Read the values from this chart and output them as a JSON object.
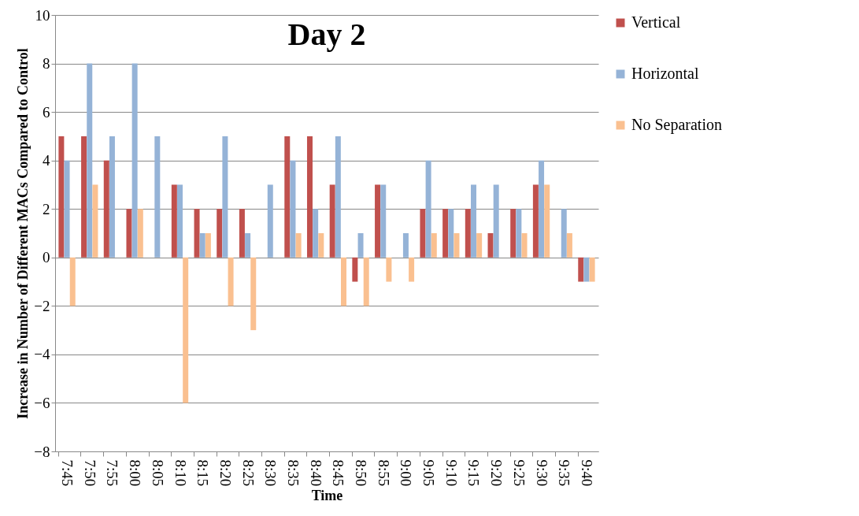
{
  "chart_data": {
    "type": "bar",
    "title": "Day 2",
    "xlabel": "Time",
    "ylabel": "Increase in Number of Different MACs Compared to Control",
    "categories": [
      "7:45",
      "7:50",
      "7:55",
      "8:00",
      "8:05",
      "8:10",
      "8:15",
      "8:20",
      "8:25",
      "8:30",
      "8:35",
      "8:40",
      "8:45",
      "8:50",
      "8:55",
      "9:00",
      "9:05",
      "9:10",
      "9:15",
      "9:20",
      "9:25",
      "9:30",
      "9:35",
      "9:40"
    ],
    "series": [
      {
        "name": "Vertical",
        "color": "#c0504d",
        "values": [
          5,
          5,
          4,
          2,
          0,
          3,
          2,
          2,
          2,
          0,
          5,
          5,
          3,
          -1,
          3,
          0,
          2,
          2,
          2,
          1,
          2,
          3,
          0,
          -1
        ]
      },
      {
        "name": "Horizontal",
        "color": "#95b3d7",
        "values": [
          4,
          8,
          5,
          8,
          5,
          3,
          1,
          5,
          1,
          3,
          4,
          2,
          5,
          1,
          3,
          1,
          4,
          2,
          3,
          3,
          2,
          4,
          2,
          -1
        ]
      },
      {
        "name": "No Separation",
        "color": "#fac090",
        "values": [
          -2,
          3,
          0,
          2,
          0,
          -6,
          1,
          -2,
          -3,
          0,
          1,
          1,
          -2,
          -2,
          -1,
          -1,
          1,
          1,
          1,
          0,
          1,
          3,
          1,
          -1
        ]
      }
    ],
    "ylim": [
      -8,
      10
    ],
    "yticks": [
      -8,
      -6,
      -4,
      -2,
      0,
      2,
      4,
      6,
      8,
      10
    ],
    "grid": "y",
    "legend": "right"
  }
}
